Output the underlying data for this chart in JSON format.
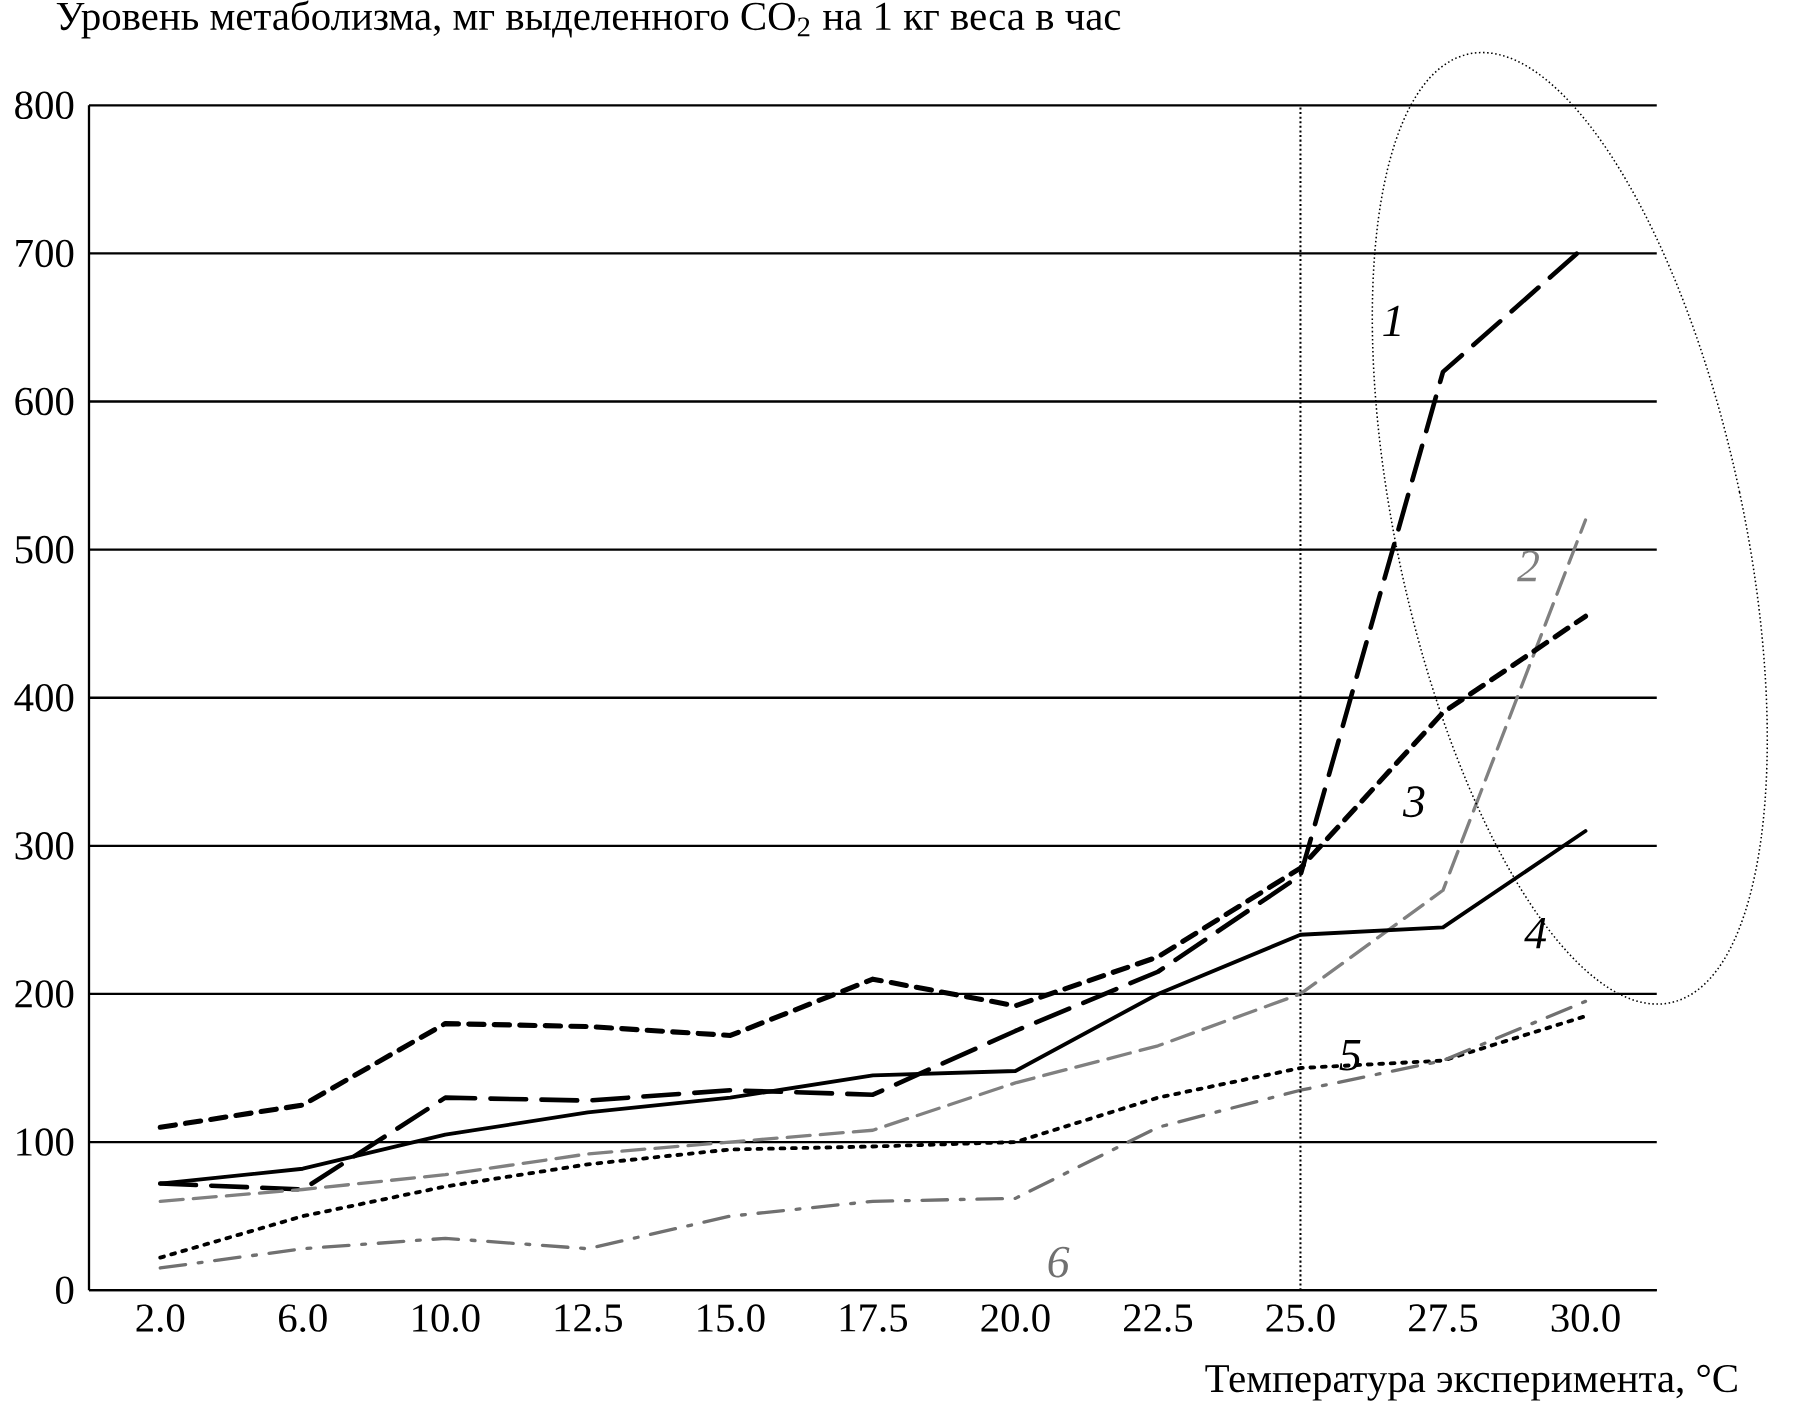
{
  "chart_data": {
    "type": "line",
    "ylabel": "Уровень метаболизма, мг выделенного CO$_{2}$ на 1 кг веса в час",
    "xlabel": "Температура эксперимента, °C",
    "categories": [
      "2.0",
      "6.0",
      "10.0",
      "12.5",
      "15.0",
      "17.5",
      "20.0",
      "22.5",
      "25.0",
      "27.5",
      "30.0"
    ],
    "ylim": [
      0,
      800
    ],
    "yticks": [
      0,
      100,
      200,
      300,
      400,
      500,
      600,
      700,
      800
    ],
    "grid": "y",
    "ref_lines": [
      {
        "axis": "x",
        "value": "25.0",
        "color": "#000000",
        "line_style": "dotted"
      }
    ],
    "series": [
      {
        "name": "1",
        "color": "#000000",
        "line_style": "dashed",
        "values": [
          72,
          68,
          130,
          128,
          135,
          132,
          175,
          215,
          280,
          620,
          705
        ]
      },
      {
        "name": "2",
        "color": "#808080",
        "line_style": "dashed",
        "values": [
          60,
          68,
          78,
          92,
          100,
          108,
          140,
          165,
          200,
          270,
          520
        ]
      },
      {
        "name": "3",
        "color": "#000000",
        "line_style": "dashed",
        "values": [
          110,
          125,
          180,
          178,
          172,
          210,
          192,
          225,
          285,
          390,
          455
        ]
      },
      {
        "name": "4",
        "color": "#000000",
        "line_style": "solid",
        "values": [
          72,
          82,
          105,
          120,
          130,
          145,
          148,
          200,
          240,
          245,
          310
        ]
      },
      {
        "name": "5",
        "color": "#000000",
        "line_style": "dotted",
        "values": [
          22,
          50,
          70,
          85,
          95,
          97,
          100,
          130,
          150,
          155,
          185
        ]
      },
      {
        "name": "6",
        "color": "#707070",
        "line_style": "dashed",
        "values": [
          15,
          28,
          35,
          28,
          50,
          60,
          62,
          110,
          135,
          155,
          195
        ]
      }
    ]
  }
}
